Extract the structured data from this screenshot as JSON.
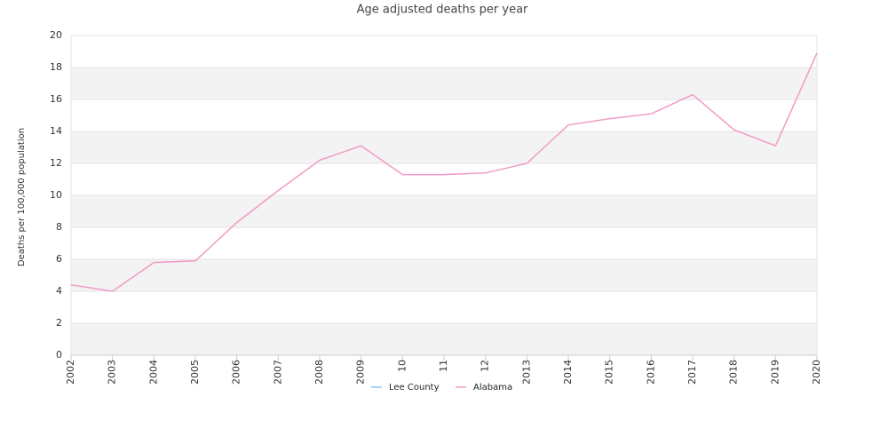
{
  "chart_data": {
    "type": "line",
    "title": "Age adjusted deaths per year",
    "y_label": "Deaths per 100,000 population",
    "categories": [
      "2002",
      "2003",
      "2004",
      "2005",
      "2006",
      "2007",
      "2008",
      "2009",
      "10",
      "11",
      "12",
      "2013",
      "2014",
      "2015",
      "2016",
      "2017",
      "2018",
      "2019",
      "2020"
    ],
    "series": [
      {
        "name": "Lee County",
        "color": "#8fc3ea",
        "values": [
          null,
          null,
          null,
          null,
          null,
          null,
          null,
          null,
          null,
          null,
          null,
          null,
          null,
          null,
          null,
          null,
          null,
          null,
          null
        ]
      },
      {
        "name": "Alabama",
        "color": "#f29ac6",
        "values": [
          4.4,
          4.0,
          5.8,
          5.9,
          8.3,
          10.3,
          12.2,
          13.1,
          11.3,
          11.3,
          11.4,
          12.0,
          14.4,
          14.8,
          15.1,
          16.3,
          14.1,
          13.1,
          18.9
        ]
      }
    ],
    "ylim": [
      0,
      20
    ],
    "yticks": [
      0,
      2,
      4,
      6,
      8,
      10,
      12,
      14,
      16,
      18,
      20
    ],
    "grid": true,
    "alternate_bands": true,
    "legend": "bottom"
  }
}
